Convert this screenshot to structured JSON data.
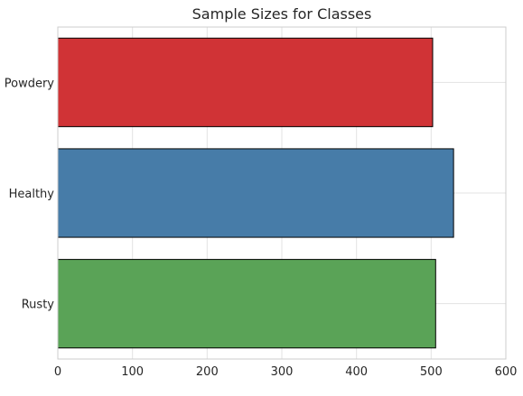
{
  "chart_data": {
    "type": "bar",
    "orientation": "horizontal",
    "title": "Sample Sizes for Classes",
    "xlabel": "",
    "ylabel": "",
    "categories": [
      "Powdery",
      "Healthy",
      "Rusty"
    ],
    "values": [
      502,
      530,
      506
    ],
    "colors": [
      "#d03336",
      "#477ca8",
      "#5aa357"
    ],
    "xlim": [
      0,
      600
    ],
    "xticks": [
      0,
      100,
      200,
      300,
      400,
      500,
      600
    ],
    "grid": true
  }
}
